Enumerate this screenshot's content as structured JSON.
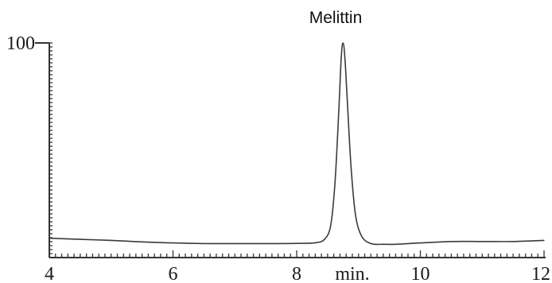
{
  "chart_data": {
    "type": "line",
    "title": "",
    "xlabel": "min.",
    "ylabel": "",
    "xlim": [
      4,
      12
    ],
    "ylim": [
      0,
      100
    ],
    "x_ticks": [
      4,
      6,
      8,
      10,
      12
    ],
    "x_tick_labels": [
      "4",
      "6",
      "8",
      "10",
      "12"
    ],
    "y_tick_labels": [
      "100"
    ],
    "grid": false,
    "colors": {
      "trace": "#3a3a3a",
      "axis": "#333333"
    },
    "annotations": [
      {
        "text": "Melittin",
        "x": 8.75,
        "y": 100
      }
    ],
    "series": [
      {
        "x": [
          4.0,
          4.5,
          5.0,
          5.5,
          6.0,
          6.5,
          7.0,
          7.5,
          8.0,
          8.3,
          8.45,
          8.55,
          8.62,
          8.68,
          8.72,
          8.75,
          8.78,
          8.82,
          8.88,
          8.95,
          9.05,
          9.2,
          9.4,
          9.6,
          10.0,
          10.5,
          11.0,
          11.5,
          12.0
        ],
        "y": [
          9,
          8.5,
          8,
          7.3,
          6.8,
          6.5,
          6.5,
          6.5,
          6.6,
          6.9,
          8.5,
          15,
          35,
          68,
          93,
          100,
          93,
          72,
          42,
          20,
          10,
          6.5,
          6.2,
          6.2,
          6.8,
          7.5,
          7.5,
          7.5,
          8
        ]
      }
    ]
  }
}
